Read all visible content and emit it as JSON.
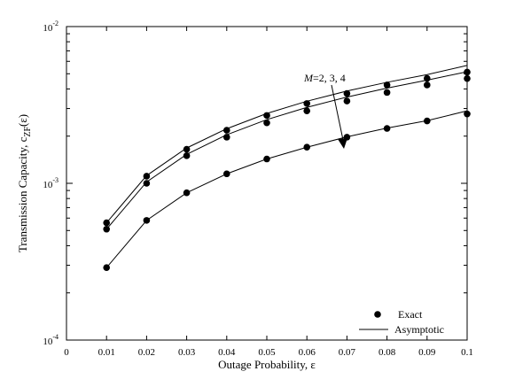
{
  "chart_data": {
    "type": "line",
    "xlabel": "Outage Probability, ε",
    "ylabel_main": "Transmission Capacity, c",
    "ylabel_sub": "ZF",
    "ylabel_tail": "(ε)",
    "xlim": [
      0,
      0.1
    ],
    "ylim": [
      0.0001,
      0.01
    ],
    "yscale": "log",
    "x_ticks": [
      "0",
      "0.01",
      "0.02",
      "0.03",
      "0.04",
      "0.05",
      "0.06",
      "0.07",
      "0.08",
      "0.09",
      "0.1"
    ],
    "y_ticks": [
      {
        "base": "10",
        "exp": "-4"
      },
      {
        "base": "10",
        "exp": "-3"
      },
      {
        "base": "10",
        "exp": "-2"
      }
    ],
    "grid": false,
    "legend": {
      "placement": "bottom-right",
      "entries": [
        "Exact",
        "Asymptotic"
      ]
    },
    "annotation": {
      "italic": "M",
      "rest": "=2, 3, 4"
    },
    "x": [
      0.01,
      0.02,
      0.03,
      0.04,
      0.05,
      0.06,
      0.07,
      0.08,
      0.09,
      0.1
    ],
    "series": [
      {
        "kind": "exact",
        "values": [
          0.00029,
          0.00058,
          0.00087,
          0.00115,
          0.00143,
          0.0017,
          0.00197,
          0.00224,
          0.0025,
          0.00277
        ]
      },
      {
        "kind": "asymptotic",
        "values": [
          0.00029,
          0.00058,
          0.00087,
          0.00115,
          0.00143,
          0.0017,
          0.00198,
          0.00225,
          0.00251,
          0.0029
        ]
      },
      {
        "kind": "exact",
        "values": [
          0.00051,
          0.001,
          0.0015,
          0.00197,
          0.00243,
          0.0029,
          0.00335,
          0.0038,
          0.00424,
          0.00466
        ]
      },
      {
        "kind": "asymptotic",
        "values": [
          0.00051,
          0.00102,
          0.00153,
          0.00204,
          0.00255,
          0.00305,
          0.00355,
          0.00405,
          0.00455,
          0.00515
        ]
      },
      {
        "kind": "exact",
        "values": [
          0.00056,
          0.00111,
          0.00165,
          0.00218,
          0.00271,
          0.00323,
          0.00374,
          0.00424,
          0.00467,
          0.00512
        ]
      },
      {
        "kind": "asymptotic",
        "values": [
          0.00056,
          0.00112,
          0.00168,
          0.00223,
          0.00279,
          0.00334,
          0.00388,
          0.00441,
          0.00494,
          0.00565
        ]
      }
    ]
  }
}
